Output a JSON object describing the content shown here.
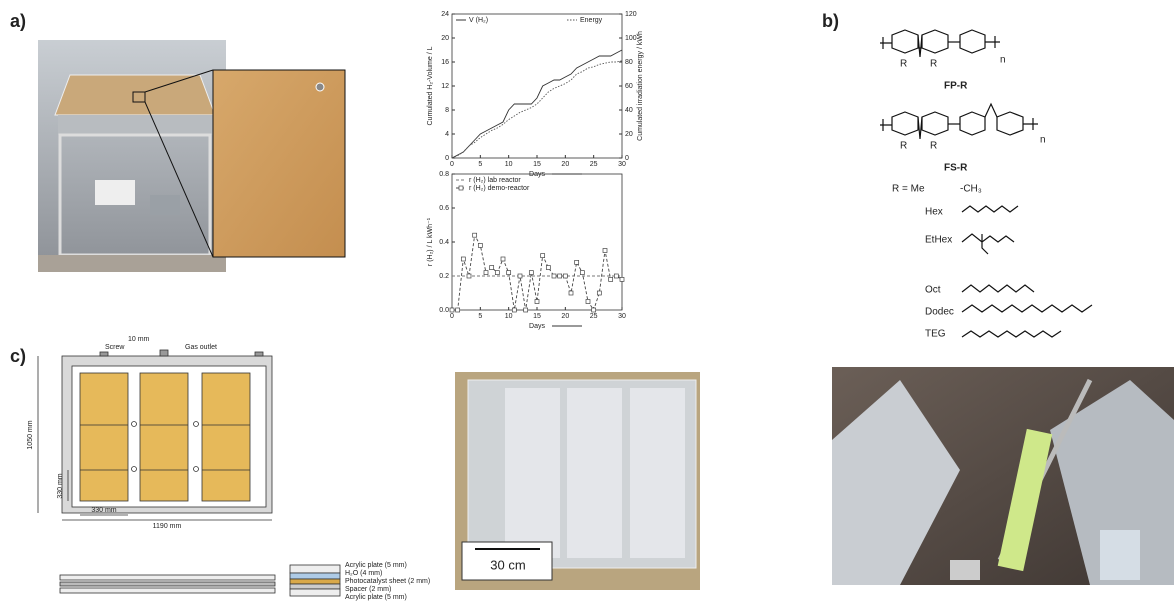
{
  "panel_labels": [
    "a)",
    "b)",
    "c)"
  ],
  "chart_data": [
    {
      "type": "line",
      "xlabel": "Days",
      "ylabel": "Cumulated H₂-Volume / L",
      "y2label": "Cumulated irradiation energy / kWh",
      "xlim": [
        0,
        30
      ],
      "xticks": [
        0,
        5,
        10,
        15,
        20,
        25,
        30
      ],
      "ylim": [
        0,
        24
      ],
      "yticks": [
        0,
        4,
        8,
        12,
        16,
        20,
        24
      ],
      "y2lim": [
        0,
        120
      ],
      "y2ticks": [
        0,
        20,
        40,
        60,
        80,
        100,
        120
      ],
      "series": [
        {
          "name": "V (H₂)",
          "color": "#333333",
          "line_style": "solid",
          "axis": "y",
          "x": [
            0,
            1,
            2,
            3,
            4,
            5,
            6,
            7,
            8,
            9,
            10,
            11,
            12,
            13,
            14,
            15,
            16,
            17,
            18,
            19,
            20,
            21,
            22,
            23,
            24,
            25,
            26,
            27,
            28,
            29,
            30
          ],
          "values": [
            0,
            0.5,
            1,
            2,
            3,
            4,
            4.5,
            5,
            5.5,
            6,
            8,
            9,
            9,
            9,
            9,
            10,
            12,
            12.5,
            13,
            13,
            13.5,
            14,
            15,
            15.5,
            16,
            16.5,
            17,
            17,
            17,
            17.5,
            18
          ]
        },
        {
          "name": "Energy",
          "color": "#555555",
          "line_style": "dotted",
          "axis": "y2",
          "x": [
            0,
            1,
            2,
            3,
            4,
            5,
            6,
            7,
            8,
            9,
            10,
            11,
            12,
            13,
            14,
            15,
            16,
            17,
            18,
            19,
            20,
            21,
            22,
            23,
            24,
            25,
            26,
            27,
            28,
            29,
            30
          ],
          "values": [
            0,
            2,
            5,
            10,
            13,
            17,
            20,
            23,
            25,
            28,
            32,
            35,
            38,
            40,
            42,
            45,
            50,
            55,
            58,
            60,
            62,
            65,
            70,
            72,
            75,
            76,
            78,
            79,
            80,
            80,
            81
          ]
        }
      ]
    },
    {
      "type": "line",
      "xlabel": "Days",
      "ylabel": "r (H₂) / L kWh⁻¹",
      "xlim": [
        0,
        30
      ],
      "xticks": [
        0,
        5,
        10,
        15,
        20,
        25,
        30
      ],
      "ylim": [
        0,
        0.8
      ],
      "yticks": [
        {
          "value": 0,
          "label": "0.0"
        },
        0.2,
        0.4,
        0.6,
        0.8
      ],
      "series": [
        {
          "name": "r (H₂) lab reactor",
          "color": "#777777",
          "line_style": "dashed",
          "axis": "y",
          "x": [
            0,
            30
          ],
          "values": [
            0.2,
            0.2
          ]
        },
        {
          "name": "r (H₂) demo-reactor",
          "color": "#444444",
          "line_style": "dashed",
          "marker": "square",
          "axis": "y",
          "x": [
            0,
            1,
            2,
            3,
            4,
            5,
            6,
            7,
            8,
            9,
            10,
            11,
            12,
            13,
            14,
            15,
            16,
            17,
            18,
            19,
            20,
            21,
            22,
            23,
            24,
            25,
            26,
            27,
            28,
            29,
            30
          ],
          "values": [
            0,
            0,
            0.3,
            0.2,
            0.44,
            0.38,
            0.22,
            0.25,
            0.22,
            0.3,
            0.22,
            0,
            0.2,
            0,
            0.22,
            0.05,
            0.32,
            0.25,
            0.2,
            0.2,
            0.2,
            0.1,
            0.28,
            0.22,
            0.05,
            0,
            0.1,
            0.35,
            0.18,
            0.2,
            0.18
          ]
        }
      ]
    }
  ],
  "chemistry": {
    "polymers": [
      "FP-R",
      "FS-R"
    ],
    "repeat": "n",
    "substituent": "R",
    "r_label": "R = Me",
    "me_formula": "-CH₃",
    "chains": [
      "Hex",
      "EtHex",
      "Oct",
      "Dodec",
      "TEG"
    ]
  },
  "diagram": {
    "labels": [
      "10 mm",
      "Screw",
      "Gas outlet",
      "1050 mm",
      "330 mm",
      "330 mm",
      "1190 mm"
    ],
    "layers": [
      "Acrylic plate (5 mm)",
      "H₂O (4 mm)",
      "Photocatalyst sheet (2 mm)",
      "Spacer (2 mm)",
      "Acrylic plate (5 mm)"
    ]
  },
  "photo": {
    "scale_label": "30 cm"
  }
}
